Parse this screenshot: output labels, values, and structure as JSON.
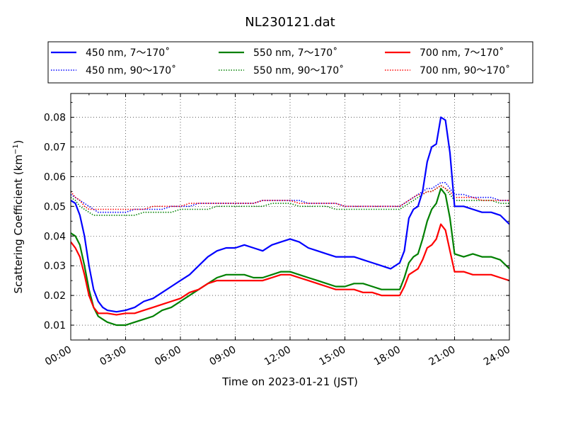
{
  "chart_data": {
    "type": "line",
    "title": "NL230121.dat",
    "xlabel": "Time on 2023-01-21 (JST)",
    "ylabel": "Scattering Coefficient (km",
    "ylabel_unit_sup": "−1",
    "ylabel_close": ")",
    "xlim": [
      "00:00",
      "24:00"
    ],
    "ylim": [
      0.005,
      0.088
    ],
    "xticks": [
      {
        "label": "00:00",
        "hour": 0
      },
      {
        "label": "03:00",
        "hour": 3
      },
      {
        "label": "06:00",
        "hour": 6
      },
      {
        "label": "09:00",
        "hour": 9
      },
      {
        "label": "12:00",
        "hour": 12
      },
      {
        "label": "15:00",
        "hour": 15
      },
      {
        "label": "18:00",
        "hour": 18
      },
      {
        "label": "21:00",
        "hour": 21
      },
      {
        "label": "24:00",
        "hour": 24
      }
    ],
    "yticks": [
      {
        "label": "0.01",
        "value": 0.01
      },
      {
        "label": "0.02",
        "value": 0.02
      },
      {
        "label": "0.03",
        "value": 0.03
      },
      {
        "label": "0.04",
        "value": 0.04
      },
      {
        "label": "0.05",
        "value": 0.05
      },
      {
        "label": "0.06",
        "value": 0.06
      },
      {
        "label": "0.07",
        "value": 0.07
      },
      {
        "label": "0.08",
        "value": 0.08
      }
    ],
    "grid": true,
    "legend_position": "top",
    "hours": [
      0,
      0.25,
      0.5,
      0.75,
      1,
      1.25,
      1.5,
      1.75,
      2,
      2.5,
      3,
      3.5,
      4,
      4.5,
      5,
      5.5,
      6,
      6.5,
      7,
      7.5,
      8,
      8.5,
      9,
      9.5,
      10,
      10.5,
      11,
      11.5,
      12,
      12.5,
      13,
      13.5,
      14,
      14.5,
      15,
      15.5,
      16,
      16.5,
      17,
      17.5,
      18,
      18.25,
      18.5,
      18.75,
      19,
      19.25,
      19.5,
      19.75,
      20,
      20.25,
      20.5,
      20.75,
      21,
      21.5,
      22,
      22.5,
      23,
      23.5,
      24
    ],
    "series": [
      {
        "name": "450 nm, 7～170˚",
        "color": "#0000ff",
        "style": "solid",
        "values": [
          0.052,
          0.051,
          0.047,
          0.04,
          0.03,
          0.022,
          0.018,
          0.016,
          0.015,
          0.0145,
          0.015,
          0.016,
          0.018,
          0.019,
          0.021,
          0.023,
          0.025,
          0.027,
          0.03,
          0.033,
          0.035,
          0.036,
          0.036,
          0.037,
          0.036,
          0.035,
          0.037,
          0.038,
          0.039,
          0.038,
          0.036,
          0.035,
          0.034,
          0.033,
          0.033,
          0.033,
          0.032,
          0.031,
          0.03,
          0.029,
          0.031,
          0.035,
          0.046,
          0.049,
          0.05,
          0.055,
          0.065,
          0.07,
          0.071,
          0.08,
          0.079,
          0.068,
          0.05,
          0.05,
          0.049,
          0.048,
          0.048,
          0.047,
          0.044
        ]
      },
      {
        "name": "550 nm, 7～170˚",
        "color": "#008000",
        "style": "solid",
        "values": [
          0.041,
          0.04,
          0.037,
          0.03,
          0.022,
          0.016,
          0.013,
          0.012,
          0.011,
          0.01,
          0.01,
          0.011,
          0.012,
          0.013,
          0.015,
          0.016,
          0.018,
          0.02,
          0.022,
          0.024,
          0.026,
          0.027,
          0.027,
          0.027,
          0.026,
          0.026,
          0.027,
          0.028,
          0.028,
          0.027,
          0.026,
          0.025,
          0.024,
          0.023,
          0.023,
          0.024,
          0.024,
          0.023,
          0.022,
          0.022,
          0.022,
          0.026,
          0.031,
          0.033,
          0.034,
          0.039,
          0.045,
          0.049,
          0.051,
          0.056,
          0.054,
          0.046,
          0.034,
          0.033,
          0.034,
          0.033,
          0.033,
          0.032,
          0.029
        ]
      },
      {
        "name": "700 nm, 7～170˚",
        "color": "#ff0000",
        "style": "solid",
        "values": [
          0.038,
          0.036,
          0.033,
          0.027,
          0.02,
          0.016,
          0.014,
          0.014,
          0.014,
          0.0135,
          0.014,
          0.014,
          0.015,
          0.016,
          0.017,
          0.018,
          0.019,
          0.021,
          0.022,
          0.024,
          0.025,
          0.025,
          0.025,
          0.025,
          0.025,
          0.025,
          0.026,
          0.027,
          0.027,
          0.026,
          0.025,
          0.024,
          0.023,
          0.022,
          0.022,
          0.022,
          0.021,
          0.021,
          0.02,
          0.02,
          0.02,
          0.023,
          0.027,
          0.028,
          0.029,
          0.032,
          0.036,
          0.037,
          0.039,
          0.044,
          0.042,
          0.035,
          0.028,
          0.028,
          0.027,
          0.027,
          0.027,
          0.026,
          0.025
        ]
      },
      {
        "name": "450 nm, 90～170˚",
        "color": "#0000ff",
        "style": "dotted",
        "values": [
          0.054,
          0.053,
          0.052,
          0.051,
          0.05,
          0.049,
          0.048,
          0.048,
          0.048,
          0.048,
          0.048,
          0.049,
          0.049,
          0.049,
          0.049,
          0.05,
          0.05,
          0.05,
          0.051,
          0.051,
          0.051,
          0.051,
          0.051,
          0.051,
          0.051,
          0.052,
          0.052,
          0.052,
          0.052,
          0.052,
          0.051,
          0.051,
          0.051,
          0.051,
          0.05,
          0.05,
          0.05,
          0.05,
          0.05,
          0.05,
          0.05,
          0.051,
          0.052,
          0.053,
          0.054,
          0.055,
          0.056,
          0.056,
          0.057,
          0.058,
          0.058,
          0.056,
          0.054,
          0.054,
          0.053,
          0.053,
          0.053,
          0.052,
          0.052
        ]
      },
      {
        "name": "550 nm, 90～170˚",
        "color": "#008000",
        "style": "dotted",
        "values": [
          0.053,
          0.052,
          0.05,
          0.049,
          0.048,
          0.047,
          0.047,
          0.047,
          0.047,
          0.047,
          0.047,
          0.047,
          0.048,
          0.048,
          0.048,
          0.048,
          0.049,
          0.049,
          0.049,
          0.049,
          0.05,
          0.05,
          0.05,
          0.05,
          0.05,
          0.05,
          0.051,
          0.051,
          0.051,
          0.05,
          0.05,
          0.05,
          0.05,
          0.049,
          0.049,
          0.049,
          0.049,
          0.049,
          0.049,
          0.049,
          0.049,
          0.05,
          0.051,
          0.052,
          0.053,
          0.054,
          0.055,
          0.055,
          0.056,
          0.057,
          0.056,
          0.054,
          0.052,
          0.052,
          0.052,
          0.052,
          0.052,
          0.051,
          0.051
        ]
      },
      {
        "name": "700 nm, 90～170˚",
        "color": "#ff0000",
        "style": "dotted",
        "values": [
          0.055,
          0.053,
          0.052,
          0.05,
          0.049,
          0.049,
          0.049,
          0.049,
          0.049,
          0.049,
          0.049,
          0.049,
          0.049,
          0.05,
          0.05,
          0.05,
          0.05,
          0.051,
          0.051,
          0.051,
          0.051,
          0.051,
          0.051,
          0.051,
          0.051,
          0.052,
          0.052,
          0.052,
          0.052,
          0.051,
          0.051,
          0.051,
          0.051,
          0.051,
          0.05,
          0.05,
          0.05,
          0.05,
          0.05,
          0.05,
          0.05,
          0.051,
          0.052,
          0.053,
          0.054,
          0.054,
          0.055,
          0.055,
          0.056,
          0.057,
          0.056,
          0.055,
          0.053,
          0.053,
          0.053,
          0.052,
          0.052,
          0.052,
          0.052
        ]
      }
    ]
  }
}
